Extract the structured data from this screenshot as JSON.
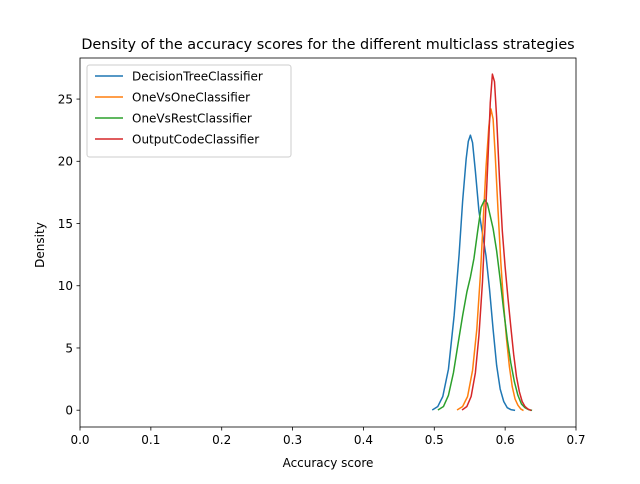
{
  "chart_data": {
    "type": "line",
    "title": "Density of the accuracy scores for the different multiclass strategies",
    "xlabel": "Accuracy score",
    "ylabel": "Density",
    "xlim": [
      0.0,
      0.7
    ],
    "ylim": [
      -1.35,
      28.3
    ],
    "xticks": [
      0.0,
      0.1,
      0.2,
      0.3,
      0.4,
      0.5,
      0.6,
      0.7
    ],
    "xtick_labels": [
      "0.0",
      "0.1",
      "0.2",
      "0.3",
      "0.4",
      "0.5",
      "0.6",
      "0.7"
    ],
    "yticks": [
      0,
      5,
      10,
      15,
      20,
      25
    ],
    "ytick_labels": [
      "0",
      "5",
      "10",
      "15",
      "20",
      "25"
    ],
    "grid": false,
    "legend_position": "top-left",
    "series": [
      {
        "name": "DecisionTreeClassifier",
        "color": "#1f77b4",
        "x": [
          0.498,
          0.505,
          0.512,
          0.52,
          0.528,
          0.535,
          0.54,
          0.545,
          0.548,
          0.551,
          0.554,
          0.558,
          0.563,
          0.568,
          0.573,
          0.578,
          0.583,
          0.588,
          0.593,
          0.598,
          0.603,
          0.608,
          0.613
        ],
        "y": [
          0.05,
          0.3,
          1.1,
          3.3,
          7.6,
          12.5,
          16.8,
          20.2,
          21.6,
          22.1,
          21.5,
          19.2,
          16.0,
          14.2,
          12.4,
          9.7,
          6.5,
          3.6,
          1.7,
          0.7,
          0.2,
          0.05,
          0.0
        ]
      },
      {
        "name": "OneVsOneClassifier",
        "color": "#ff7f0e",
        "x": [
          0.533,
          0.54,
          0.547,
          0.554,
          0.56,
          0.565,
          0.569,
          0.573,
          0.577,
          0.58,
          0.583,
          0.586,
          0.59,
          0.594,
          0.598,
          0.602,
          0.606,
          0.61,
          0.614,
          0.618,
          0.622,
          0.625
        ],
        "y": [
          0.05,
          0.3,
          1.1,
          3.2,
          6.5,
          10.8,
          15.2,
          19.5,
          22.8,
          24.2,
          23.4,
          20.5,
          16.0,
          11.8,
          8.4,
          5.7,
          3.5,
          1.9,
          0.9,
          0.4,
          0.1,
          0.0
        ]
      },
      {
        "name": "OneVsRestClassifier",
        "color": "#2ca02c",
        "x": [
          0.506,
          0.513,
          0.52,
          0.527,
          0.534,
          0.54,
          0.546,
          0.551,
          0.556,
          0.561,
          0.566,
          0.571,
          0.575,
          0.579,
          0.583,
          0.588,
          0.593,
          0.598,
          0.603,
          0.608,
          0.613,
          0.618,
          0.623,
          0.628,
          0.633,
          0.637
        ],
        "y": [
          0.05,
          0.3,
          1.2,
          3.0,
          5.5,
          7.6,
          9.5,
          10.7,
          12.2,
          14.3,
          16.3,
          16.9,
          16.6,
          15.6,
          14.6,
          12.8,
          10.5,
          8.0,
          5.7,
          3.8,
          2.3,
          1.2,
          0.5,
          0.2,
          0.05,
          0.0
        ]
      },
      {
        "name": "OutputCodeClassifier",
        "color": "#d62728",
        "x": [
          0.54,
          0.546,
          0.552,
          0.558,
          0.563,
          0.568,
          0.572,
          0.576,
          0.579,
          0.582,
          0.585,
          0.588,
          0.592,
          0.596,
          0.6,
          0.604,
          0.608,
          0.612,
          0.616,
          0.62,
          0.624,
          0.628,
          0.632,
          0.636
        ],
        "y": [
          0.05,
          0.3,
          1.1,
          3.0,
          6.0,
          10.3,
          15.3,
          20.5,
          24.7,
          27.0,
          26.4,
          23.5,
          18.6,
          14.4,
          11.5,
          9.0,
          6.7,
          4.5,
          2.7,
          1.5,
          0.7,
          0.3,
          0.1,
          0.0
        ]
      }
    ]
  }
}
